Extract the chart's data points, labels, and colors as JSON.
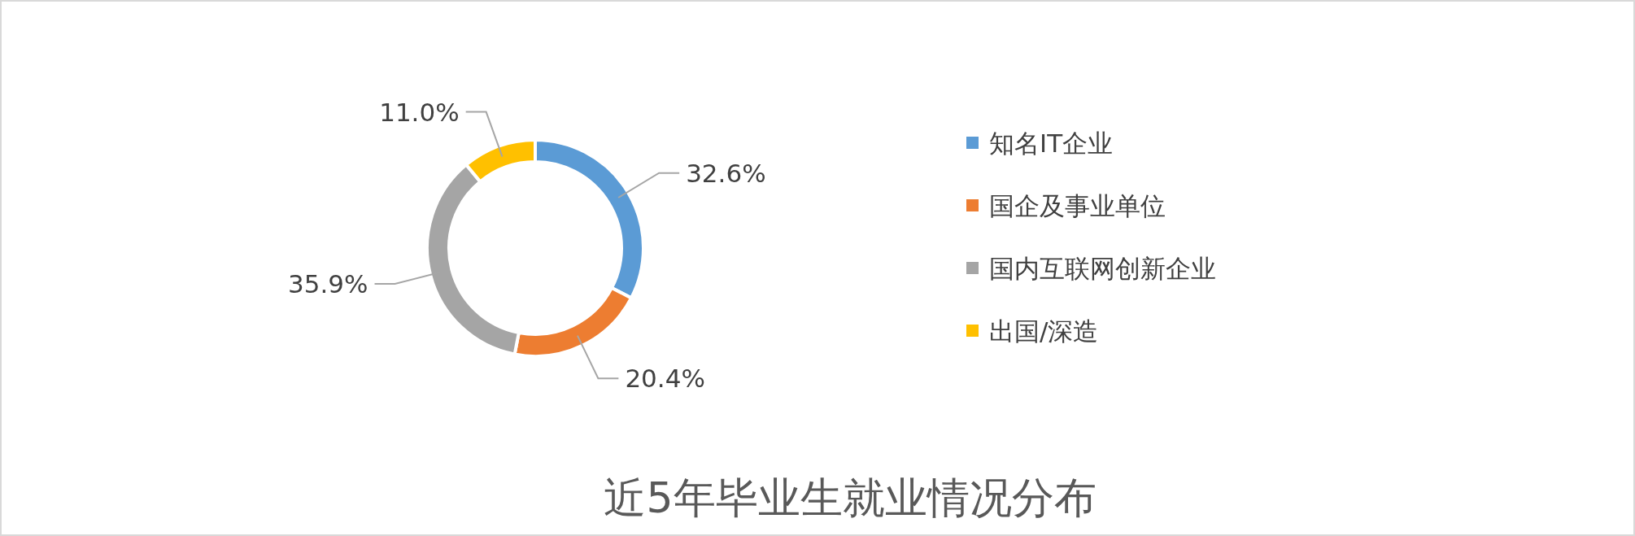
{
  "chart_data": {
    "type": "donut",
    "title": "近5年毕业生就业情况分布",
    "categories": [
      "知名IT企业",
      "国企及事业单位",
      "国内互联网创新企业",
      "出国/深造"
    ],
    "values": [
      32.6,
      20.4,
      35.9,
      11.0
    ],
    "value_labels": [
      "32.6%",
      "20.4%",
      "35.9%",
      "11.0%"
    ],
    "colors": [
      "#5b9bd5",
      "#ed7d31",
      "#a5a5a5",
      "#ffc000"
    ],
    "legend": "right"
  }
}
